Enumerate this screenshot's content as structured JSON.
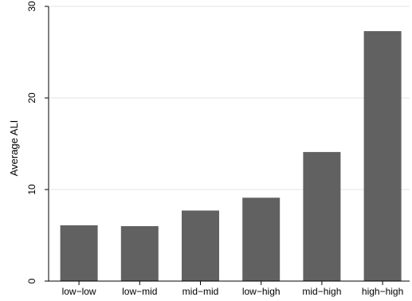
{
  "chart_data": {
    "type": "bar",
    "title": "",
    "xlabel": "",
    "ylabel": "Average ALI",
    "categories": [
      "low−low",
      "low−mid",
      "mid−mid",
      "low−high",
      "mid−high",
      "high−high"
    ],
    "values": [
      6.1,
      6.0,
      7.7,
      9.1,
      14.1,
      27.3
    ],
    "ylim": [
      0,
      30
    ],
    "yticks": [
      0,
      10,
      20,
      30
    ],
    "grid": true,
    "legend": "none",
    "colors": {
      "bar": "#616161",
      "grid": "#e3e3e3",
      "axis": "#000000",
      "background": "#ffffff"
    }
  }
}
